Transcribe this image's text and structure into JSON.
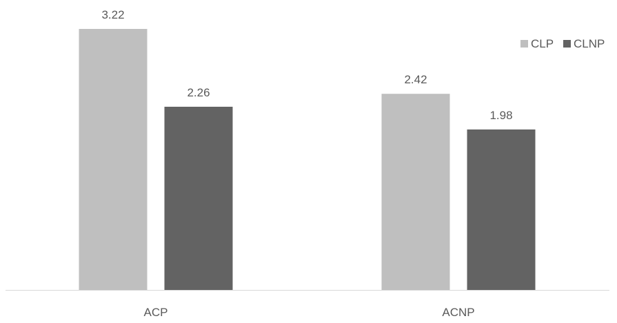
{
  "chart_data": {
    "type": "bar",
    "title": "",
    "xlabel": "",
    "ylabel": "",
    "categories": [
      "ACP",
      "ACNP"
    ],
    "series": [
      {
        "name": "CLP",
        "values": [
          3.22,
          2.42
        ],
        "color": "#bfbfbf"
      },
      {
        "name": "CLNP",
        "values": [
          2.26,
          1.98
        ],
        "color": "#636363"
      }
    ],
    "ylim": [
      0,
      3.22
    ],
    "grid": false,
    "legend": {
      "position": "right",
      "entries": [
        "CLP",
        "CLNP"
      ]
    },
    "data_labels": true,
    "axis_color": "#d9d9d9",
    "text_color": "#595959"
  }
}
